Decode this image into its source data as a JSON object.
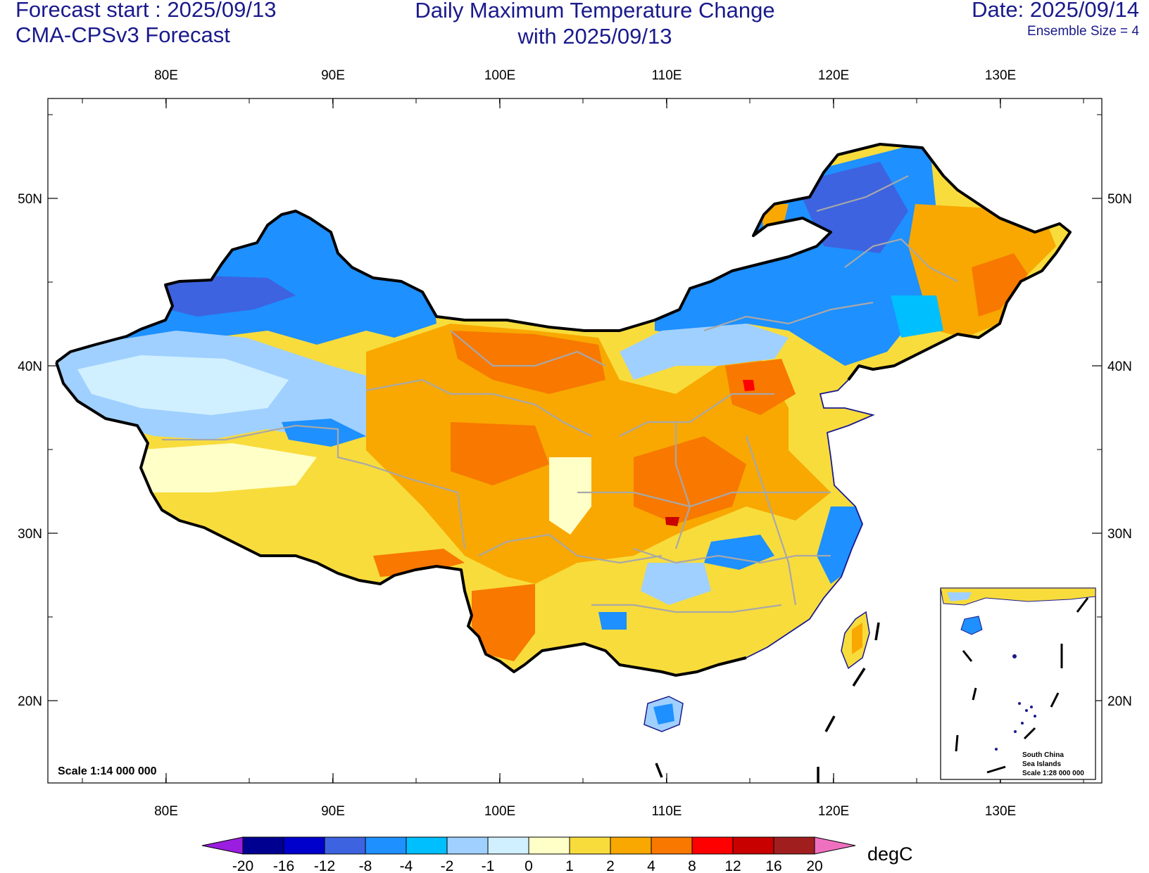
{
  "header": {
    "forecast_start": "Forecast start : 2025/09/13",
    "model": "CMA-CPSv3 Forecast",
    "title_line1": "Daily Maximum Temperature Change",
    "title_line2": "with 2025/09/13",
    "date": "Date: 2025/09/14",
    "ensemble": "Ensemble Size = 4"
  },
  "map": {
    "lon_ticks": [
      "80E",
      "90E",
      "100E",
      "110E",
      "120E",
      "130E"
    ],
    "lat_ticks": [
      "50N",
      "40N",
      "30N",
      "20N"
    ],
    "scale_main": "Scale 1:14 000 000",
    "inset": {
      "line1": "South China",
      "line2": "Sea Islands",
      "line3": "Scale 1:28 000 000"
    },
    "colors": {
      "border": "#000000",
      "province": "#a8a8a8",
      "coast": "#1a1a8c"
    }
  },
  "colorbar": {
    "unit": "degC",
    "labels": [
      "-20",
      "-16",
      "-12",
      "-8",
      "-4",
      "-2",
      "-1",
      "0",
      "1",
      "2",
      "4",
      "8",
      "12",
      "16",
      "20"
    ],
    "colors": [
      "#9b1de0",
      "#000090",
      "#0000cd",
      "#3d63e0",
      "#1e90ff",
      "#00bfff",
      "#a0d0ff",
      "#d0f0ff",
      "#ffffc8",
      "#f8dc3c",
      "#f8a800",
      "#f87800",
      "#ff0000",
      "#c80000",
      "#a01e1e",
      "#f070c0"
    ]
  }
}
